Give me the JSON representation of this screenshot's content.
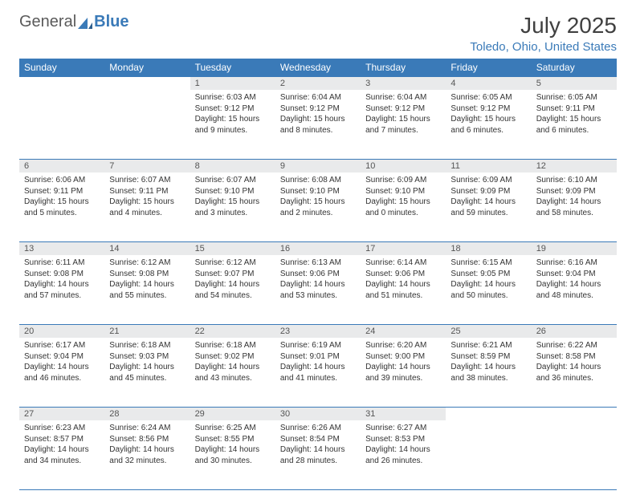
{
  "logo": {
    "part1": "General",
    "part2": "Blue"
  },
  "title": "July 2025",
  "location": "Toledo, Ohio, United States",
  "colors": {
    "accent": "#3a7ab8",
    "daynum_bg": "#e9eaeb",
    "text": "#333333",
    "title_text": "#404040"
  },
  "days_of_week": [
    "Sunday",
    "Monday",
    "Tuesday",
    "Wednesday",
    "Thursday",
    "Friday",
    "Saturday"
  ],
  "weeks": [
    [
      null,
      null,
      {
        "n": "1",
        "sr": "Sunrise: 6:03 AM",
        "ss": "Sunset: 9:12 PM",
        "dl": "Daylight: 15 hours and 9 minutes."
      },
      {
        "n": "2",
        "sr": "Sunrise: 6:04 AM",
        "ss": "Sunset: 9:12 PM",
        "dl": "Daylight: 15 hours and 8 minutes."
      },
      {
        "n": "3",
        "sr": "Sunrise: 6:04 AM",
        "ss": "Sunset: 9:12 PM",
        "dl": "Daylight: 15 hours and 7 minutes."
      },
      {
        "n": "4",
        "sr": "Sunrise: 6:05 AM",
        "ss": "Sunset: 9:12 PM",
        "dl": "Daylight: 15 hours and 6 minutes."
      },
      {
        "n": "5",
        "sr": "Sunrise: 6:05 AM",
        "ss": "Sunset: 9:11 PM",
        "dl": "Daylight: 15 hours and 6 minutes."
      }
    ],
    [
      {
        "n": "6",
        "sr": "Sunrise: 6:06 AM",
        "ss": "Sunset: 9:11 PM",
        "dl": "Daylight: 15 hours and 5 minutes."
      },
      {
        "n": "7",
        "sr": "Sunrise: 6:07 AM",
        "ss": "Sunset: 9:11 PM",
        "dl": "Daylight: 15 hours and 4 minutes."
      },
      {
        "n": "8",
        "sr": "Sunrise: 6:07 AM",
        "ss": "Sunset: 9:10 PM",
        "dl": "Daylight: 15 hours and 3 minutes."
      },
      {
        "n": "9",
        "sr": "Sunrise: 6:08 AM",
        "ss": "Sunset: 9:10 PM",
        "dl": "Daylight: 15 hours and 2 minutes."
      },
      {
        "n": "10",
        "sr": "Sunrise: 6:09 AM",
        "ss": "Sunset: 9:10 PM",
        "dl": "Daylight: 15 hours and 0 minutes."
      },
      {
        "n": "11",
        "sr": "Sunrise: 6:09 AM",
        "ss": "Sunset: 9:09 PM",
        "dl": "Daylight: 14 hours and 59 minutes."
      },
      {
        "n": "12",
        "sr": "Sunrise: 6:10 AM",
        "ss": "Sunset: 9:09 PM",
        "dl": "Daylight: 14 hours and 58 minutes."
      }
    ],
    [
      {
        "n": "13",
        "sr": "Sunrise: 6:11 AM",
        "ss": "Sunset: 9:08 PM",
        "dl": "Daylight: 14 hours and 57 minutes."
      },
      {
        "n": "14",
        "sr": "Sunrise: 6:12 AM",
        "ss": "Sunset: 9:08 PM",
        "dl": "Daylight: 14 hours and 55 minutes."
      },
      {
        "n": "15",
        "sr": "Sunrise: 6:12 AM",
        "ss": "Sunset: 9:07 PM",
        "dl": "Daylight: 14 hours and 54 minutes."
      },
      {
        "n": "16",
        "sr": "Sunrise: 6:13 AM",
        "ss": "Sunset: 9:06 PM",
        "dl": "Daylight: 14 hours and 53 minutes."
      },
      {
        "n": "17",
        "sr": "Sunrise: 6:14 AM",
        "ss": "Sunset: 9:06 PM",
        "dl": "Daylight: 14 hours and 51 minutes."
      },
      {
        "n": "18",
        "sr": "Sunrise: 6:15 AM",
        "ss": "Sunset: 9:05 PM",
        "dl": "Daylight: 14 hours and 50 minutes."
      },
      {
        "n": "19",
        "sr": "Sunrise: 6:16 AM",
        "ss": "Sunset: 9:04 PM",
        "dl": "Daylight: 14 hours and 48 minutes."
      }
    ],
    [
      {
        "n": "20",
        "sr": "Sunrise: 6:17 AM",
        "ss": "Sunset: 9:04 PM",
        "dl": "Daylight: 14 hours and 46 minutes."
      },
      {
        "n": "21",
        "sr": "Sunrise: 6:18 AM",
        "ss": "Sunset: 9:03 PM",
        "dl": "Daylight: 14 hours and 45 minutes."
      },
      {
        "n": "22",
        "sr": "Sunrise: 6:18 AM",
        "ss": "Sunset: 9:02 PM",
        "dl": "Daylight: 14 hours and 43 minutes."
      },
      {
        "n": "23",
        "sr": "Sunrise: 6:19 AM",
        "ss": "Sunset: 9:01 PM",
        "dl": "Daylight: 14 hours and 41 minutes."
      },
      {
        "n": "24",
        "sr": "Sunrise: 6:20 AM",
        "ss": "Sunset: 9:00 PM",
        "dl": "Daylight: 14 hours and 39 minutes."
      },
      {
        "n": "25",
        "sr": "Sunrise: 6:21 AM",
        "ss": "Sunset: 8:59 PM",
        "dl": "Daylight: 14 hours and 38 minutes."
      },
      {
        "n": "26",
        "sr": "Sunrise: 6:22 AM",
        "ss": "Sunset: 8:58 PM",
        "dl": "Daylight: 14 hours and 36 minutes."
      }
    ],
    [
      {
        "n": "27",
        "sr": "Sunrise: 6:23 AM",
        "ss": "Sunset: 8:57 PM",
        "dl": "Daylight: 14 hours and 34 minutes."
      },
      {
        "n": "28",
        "sr": "Sunrise: 6:24 AM",
        "ss": "Sunset: 8:56 PM",
        "dl": "Daylight: 14 hours and 32 minutes."
      },
      {
        "n": "29",
        "sr": "Sunrise: 6:25 AM",
        "ss": "Sunset: 8:55 PM",
        "dl": "Daylight: 14 hours and 30 minutes."
      },
      {
        "n": "30",
        "sr": "Sunrise: 6:26 AM",
        "ss": "Sunset: 8:54 PM",
        "dl": "Daylight: 14 hours and 28 minutes."
      },
      {
        "n": "31",
        "sr": "Sunrise: 6:27 AM",
        "ss": "Sunset: 8:53 PM",
        "dl": "Daylight: 14 hours and 26 minutes."
      },
      null,
      null
    ]
  ]
}
